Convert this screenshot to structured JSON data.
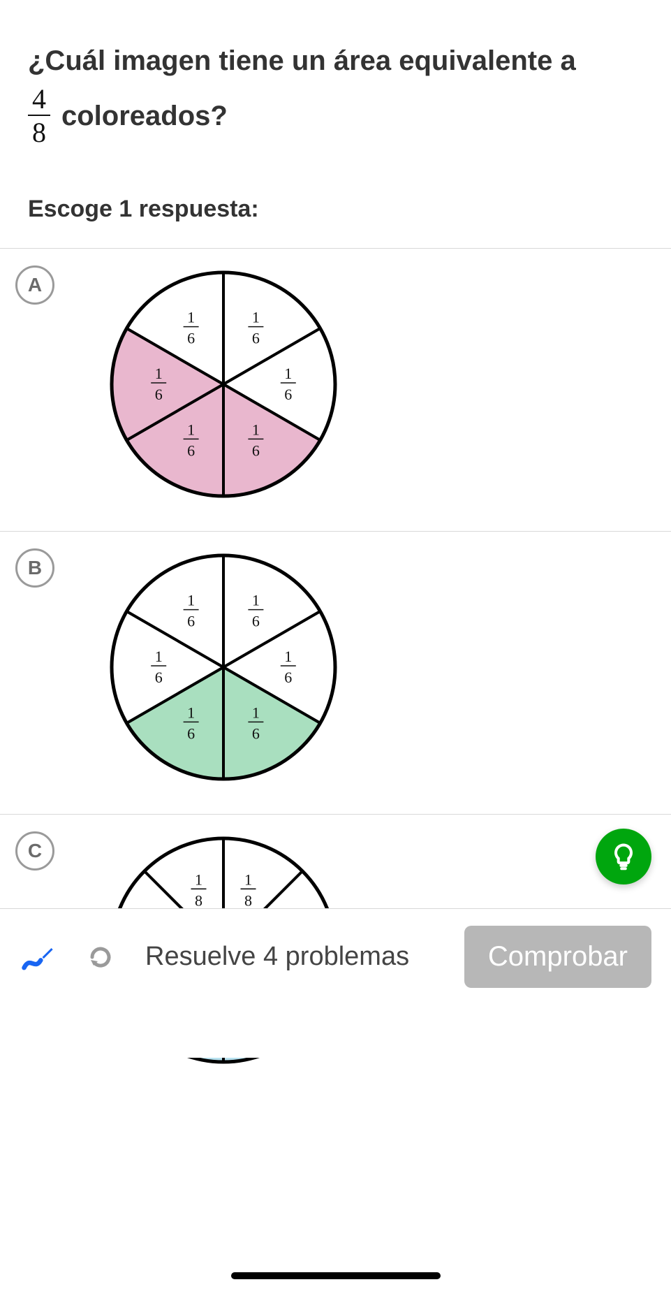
{
  "question": {
    "line1": "¿Cuál imagen tiene un área equivalente a",
    "fraction": {
      "num": "4",
      "den": "8"
    },
    "after": "coloreados?"
  },
  "prompt": "Escoge 1 respuesta:",
  "options": [
    {
      "letter": "A",
      "pie": {
        "slices": 6,
        "fill_color": "#e9b7ce",
        "white": "#ffffff",
        "stroke": "#000000",
        "shaded_start_deg": 90,
        "shaded_end_deg": 330,
        "label_num": "1",
        "label_den": "6",
        "radius": 160
      }
    },
    {
      "letter": "B",
      "pie": {
        "slices": 6,
        "fill_color": "#a9dfbf",
        "white": "#ffffff",
        "stroke": "#000000",
        "shaded_start_deg": 90,
        "shaded_end_deg": 270,
        "label_num": "1",
        "label_den": "6",
        "radius": 160
      }
    },
    {
      "letter": "C",
      "pie": {
        "slices": 8,
        "fill_color": "#b7e1ef",
        "white": "#ffffff",
        "stroke": "#000000",
        "shaded_start_deg": 90,
        "shaded_end_deg": 225,
        "label_num": "1",
        "label_den": "8",
        "radius": 160
      }
    }
  ],
  "fab": {
    "color": "#00a60e"
  },
  "bottom": {
    "progress": "Resuelve 4 problemas",
    "check": "Comprobar",
    "scribble_color": "#1865f2",
    "redo_color": "#9a9a9a",
    "btn_bg": "#b7b7b7",
    "btn_fg": "#ffffff"
  }
}
